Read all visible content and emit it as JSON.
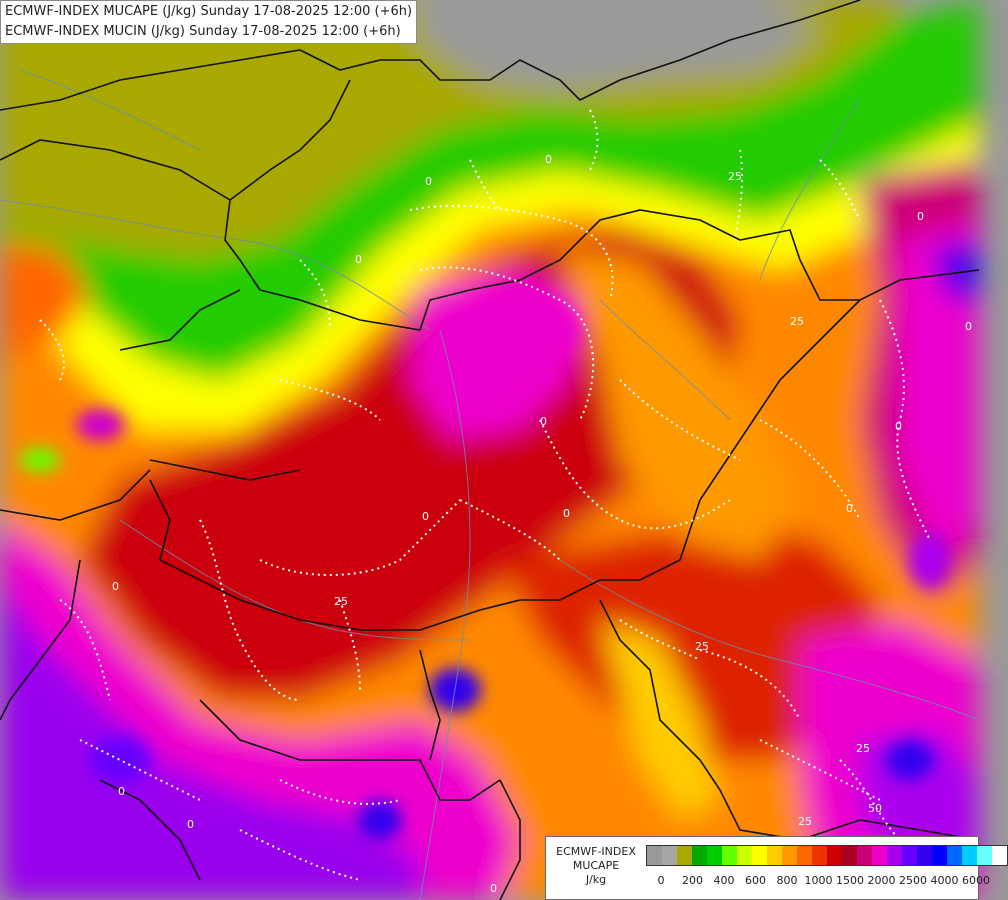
{
  "header": {
    "line1": "ECMWF-INDEX MUCAPE (J/kg) Sunday 17-08-2025 12:00 (+6h)",
    "line2": "ECMWF-INDEX MUCIN (J/kg) Sunday 17-08-2025 12:00 (+6h)"
  },
  "map": {
    "contour_labels": [
      "0",
      "25",
      "50"
    ],
    "label_color": "#ffffff"
  },
  "legend": {
    "name_line1": "ECMWF-INDEX",
    "name_line2": "MUCAPE",
    "unit": "J/kg",
    "colors": [
      "#999999",
      "#a6a6a6",
      "#a8a800",
      "#00aa00",
      "#00cc00",
      "#66ff00",
      "#ccff00",
      "#ffff00",
      "#ffcc00",
      "#ff9900",
      "#ff6600",
      "#ee3300",
      "#cc0000",
      "#aa0022",
      "#cc0077",
      "#ee00cc",
      "#aa00ee",
      "#6600ff",
      "#3300ee",
      "#0000ff",
      "#0066ff",
      "#00ccff",
      "#66ffff",
      "#ffffff"
    ],
    "tick_labels": [
      "0",
      "200",
      "400",
      "600",
      "800",
      "1000",
      "1500",
      "2000",
      "2500",
      "4000",
      "6000"
    ]
  }
}
